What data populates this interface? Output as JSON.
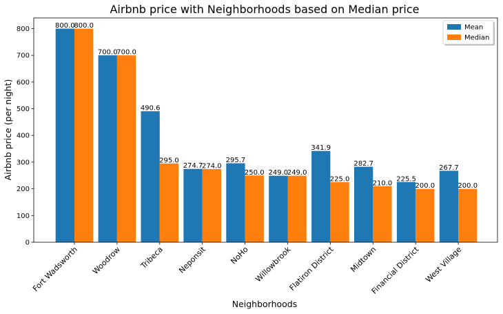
{
  "chart_data": {
    "type": "bar",
    "title": "Airbnb price with Neighborhoods based on Median price",
    "xlabel": "Neighborhoods",
    "ylabel": "Airbnb price (per night)",
    "ylim": [
      0,
      840
    ],
    "yticks": [
      0,
      100,
      200,
      300,
      400,
      500,
      600,
      700,
      800
    ],
    "grid": false,
    "legend_position": "top-right",
    "categories": [
      "Fort Wadsworth",
      "Woodrow",
      "Tribeca",
      "Neponsit",
      "NoHo",
      "Willowbrook",
      "Flatiron District",
      "Midtown",
      "Financial District",
      "West Village"
    ],
    "series": [
      {
        "name": "Mean",
        "color": "#1f77b4",
        "values": [
          800.0,
          700.0,
          490.6,
          274.7,
          295.7,
          249.0,
          341.9,
          282.7,
          225.5,
          267.7
        ],
        "labels": [
          "800.0",
          "700.0",
          "490.6",
          "274.7",
          "295.7",
          "249.0",
          "341.9",
          "282.7",
          "225.5",
          "267.7"
        ]
      },
      {
        "name": "Median",
        "color": "#ff7f0e",
        "values": [
          800.0,
          700.0,
          295.0,
          274.0,
          250.0,
          249.0,
          225.0,
          210.0,
          200.0,
          200.0
        ],
        "labels": [
          "800.0",
          "700.0",
          "295.0",
          "274.0",
          "250.0",
          "249.0",
          "225.0",
          "210.0",
          "200.0",
          "200.0"
        ]
      }
    ]
  }
}
